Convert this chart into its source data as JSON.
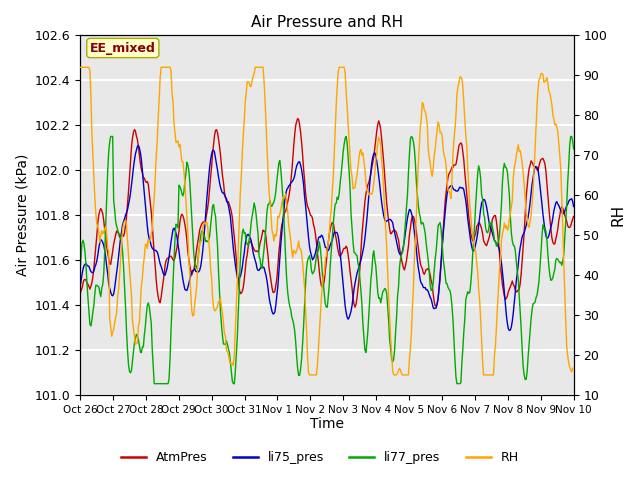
{
  "title": "Air Pressure and RH",
  "xlabel": "Time",
  "ylabel_left": "Air Pressure (kPa)",
  "ylabel_right": "RH",
  "annotation": "EE_mixed",
  "ylim_left": [
    101.0,
    102.6
  ],
  "ylim_right": [
    10,
    100
  ],
  "xtick_labels": [
    "Oct 26",
    "Oct 27",
    "Oct 28",
    "Oct 29",
    "Oct 30",
    "Oct 31",
    "Nov 1",
    "Nov 2",
    "Nov 3",
    "Nov 4",
    "Nov 5",
    "Nov 6",
    "Nov 7",
    "Nov 8",
    "Nov 9",
    "Nov 10"
  ],
  "yticks_left": [
    101.0,
    101.2,
    101.4,
    101.6,
    101.8,
    102.0,
    102.2,
    102.4,
    102.6
  ],
  "yticks_right": [
    10,
    20,
    30,
    40,
    50,
    60,
    70,
    80,
    90,
    100
  ],
  "colors": {
    "AtmPres": "#CC0000",
    "li75_pres": "#0000CC",
    "li77_pres": "#00AA00",
    "RH": "#FFA500"
  },
  "legend_labels": [
    "AtmPres",
    "li75_pres",
    "li77_pres",
    "RH"
  ],
  "plot_bg_color": "#E8E8E8",
  "grid_color": "#FFFFFF",
  "n_points": 500
}
